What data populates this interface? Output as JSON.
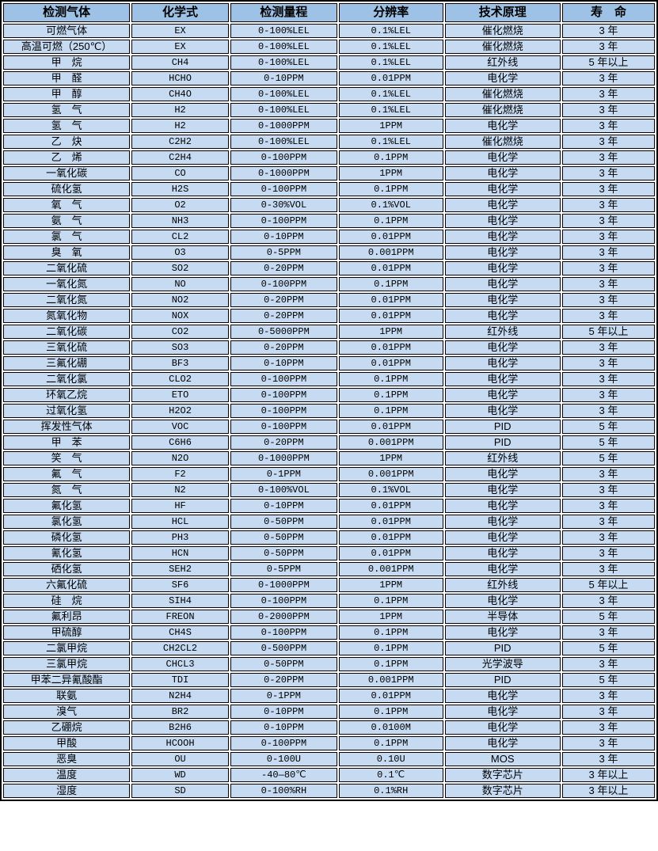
{
  "table": {
    "columns": [
      "检测气体",
      "化学式",
      "检测量程",
      "分辨率",
      "技术原理",
      "寿　命"
    ],
    "rows": [
      [
        "可燃气体",
        "EX",
        "0-100%LEL",
        "0.1%LEL",
        "催化燃烧",
        "3 年"
      ],
      [
        "高温可燃（250℃）",
        "EX",
        "0-100%LEL",
        "0.1%LEL",
        "催化燃烧",
        "3 年"
      ],
      [
        "甲　烷",
        "CH4",
        "0-100%LEL",
        "0.1%LEL",
        "红外线",
        "5 年以上"
      ],
      [
        "甲　醛",
        "HCHO",
        "0-10PPM",
        "0.01PPM",
        "电化学",
        "3 年"
      ],
      [
        "甲　醇",
        "CH4O",
        "0-100%LEL",
        "0.1%LEL",
        "催化燃烧",
        "3 年"
      ],
      [
        "氢　气",
        "H2",
        "0-100%LEL",
        "0.1%LEL",
        "催化燃烧",
        "3 年"
      ],
      [
        "氢　气",
        "H2",
        "0-1000PPM",
        "1PPM",
        "电化学",
        "3 年"
      ],
      [
        "乙　炔",
        "C2H2",
        "0-100%LEL",
        "0.1%LEL",
        "催化燃烧",
        "3 年"
      ],
      [
        "乙　烯",
        "C2H4",
        "0-100PPM",
        "0.1PPM",
        "电化学",
        "3 年"
      ],
      [
        "一氧化碳",
        "CO",
        "0-1000PPM",
        "1PPM",
        "电化学",
        "3 年"
      ],
      [
        "硫化氢",
        "H2S",
        "0-100PPM",
        "0.1PPM",
        "电化学",
        "3 年"
      ],
      [
        "氧　气",
        "O2",
        "0-30%VOL",
        "0.1%VOL",
        "电化学",
        "3 年"
      ],
      [
        "氨　气",
        "NH3",
        "0-100PPM",
        "0.1PPM",
        "电化学",
        "3 年"
      ],
      [
        "氯　气",
        "CL2",
        "0-10PPM",
        "0.01PPM",
        "电化学",
        "3 年"
      ],
      [
        "臭　氧",
        "O3",
        "0-5PPM",
        "0.001PPM",
        "电化学",
        "3 年"
      ],
      [
        "二氧化硫",
        "SO2",
        "0-20PPM",
        "0.01PPM",
        "电化学",
        "3 年"
      ],
      [
        "一氧化氮",
        "NO",
        "0-100PPM",
        "0.1PPM",
        "电化学",
        "3 年"
      ],
      [
        "二氧化氮",
        "NO2",
        "0-20PPM",
        "0.01PPM",
        "电化学",
        "3 年"
      ],
      [
        "氮氧化物",
        "NOX",
        "0-20PPM",
        "0.01PPM",
        "电化学",
        "3 年"
      ],
      [
        "二氧化碳",
        "CO2",
        "0-5000PPM",
        "1PPM",
        "红外线",
        "5 年以上"
      ],
      [
        "三氧化硫",
        "SO3",
        "0-20PPM",
        "0.01PPM",
        "电化学",
        "3 年"
      ],
      [
        "三氟化硼",
        "BF3",
        "0-10PPM",
        "0.01PPM",
        "电化学",
        "3 年"
      ],
      [
        "二氧化氯",
        "CLO2",
        "0-100PPM",
        "0.1PPM",
        "电化学",
        "3 年"
      ],
      [
        "环氧乙烷",
        "ETO",
        "0-100PPM",
        "0.1PPM",
        "电化学",
        "3 年"
      ],
      [
        "过氧化氢",
        "H2O2",
        "0-100PPM",
        "0.1PPM",
        "电化学",
        "3 年"
      ],
      [
        "挥发性气体",
        "VOC",
        "0-100PPM",
        "0.01PPM",
        "PID",
        "5 年"
      ],
      [
        "甲　苯",
        "C6H6",
        "0-20PPM",
        "0.001PPM",
        "PID",
        "5 年"
      ],
      [
        "笑　气",
        "N2O",
        "0-1000PPM",
        "1PPM",
        "红外线",
        "5 年"
      ],
      [
        "氟　气",
        "F2",
        "0-1PPM",
        "0.001PPM",
        "电化学",
        "3 年"
      ],
      [
        "氮　气",
        "N2",
        "0-100%VOL",
        "0.1%VOL",
        "电化学",
        "3 年"
      ],
      [
        "氟化氢",
        "HF",
        "0-10PPM",
        "0.01PPM",
        "电化学",
        "3 年"
      ],
      [
        "氯化氢",
        "HCL",
        "0-50PPM",
        "0.01PPM",
        "电化学",
        "3 年"
      ],
      [
        "磷化氢",
        "PH3",
        "0-50PPM",
        "0.01PPM",
        "电化学",
        "3 年"
      ],
      [
        "氰化氢",
        "HCN",
        "0-50PPM",
        "0.01PPM",
        "电化学",
        "3 年"
      ],
      [
        "硒化氢",
        "SEH2",
        "0-5PPM",
        "0.001PPM",
        "电化学",
        "3 年"
      ],
      [
        "六氟化硫",
        "SF6",
        "0-1000PPM",
        "1PPM",
        "红外线",
        "5 年以上"
      ],
      [
        "硅　烷",
        "SIH4",
        "0-100PPM",
        "0.1PPM",
        "电化学",
        "3 年"
      ],
      [
        "氟利昂",
        "FREON",
        "0-2000PPM",
        "1PPM",
        "半导体",
        "5 年"
      ],
      [
        "甲硫醇",
        "CH4S",
        "0-100PPM",
        "0.1PPM",
        "电化学",
        "3 年"
      ],
      [
        "二氯甲烷",
        "CH2CL2",
        "0-500PPM",
        "0.1PPM",
        "PID",
        "5 年"
      ],
      [
        "三氯甲烷",
        "CHCL3",
        "0-50PPM",
        "0.1PPM",
        "光学波导",
        "3 年"
      ],
      [
        "甲苯二异氰酸酯",
        "TDI",
        "0-20PPM",
        "0.001PPM",
        "PID",
        "5 年"
      ],
      [
        "联氨",
        "N2H4",
        "0-1PPM",
        "0.01PPM",
        "电化学",
        "3 年"
      ],
      [
        "溴气",
        "BR2",
        "0-10PPM",
        "0.1PPM",
        "电化学",
        "3 年"
      ],
      [
        "乙硼烷",
        "B2H6",
        "0-10PPM",
        "0.0100M",
        "电化学",
        "3 年"
      ],
      [
        "甲酸",
        "HCOOH",
        "0-100PPM",
        "0.1PPM",
        "电化学",
        "3 年"
      ],
      [
        "恶臭",
        "OU",
        "0-100U",
        "0.10U",
        "MOS",
        "3 年"
      ],
      [
        "温度",
        "WD",
        "-40—80℃",
        "0.1℃",
        "数字芯片",
        "3 年以上"
      ],
      [
        "湿度",
        "SD",
        "0-100%RH",
        "0.1%RH",
        "数字芯片",
        "3 年以上"
      ]
    ]
  },
  "colors": {
    "header_bg": "#9dc2e5",
    "row_bg": "#c6daf2",
    "border": "#000000",
    "gap": "#ffffff",
    "text": "#000000"
  }
}
